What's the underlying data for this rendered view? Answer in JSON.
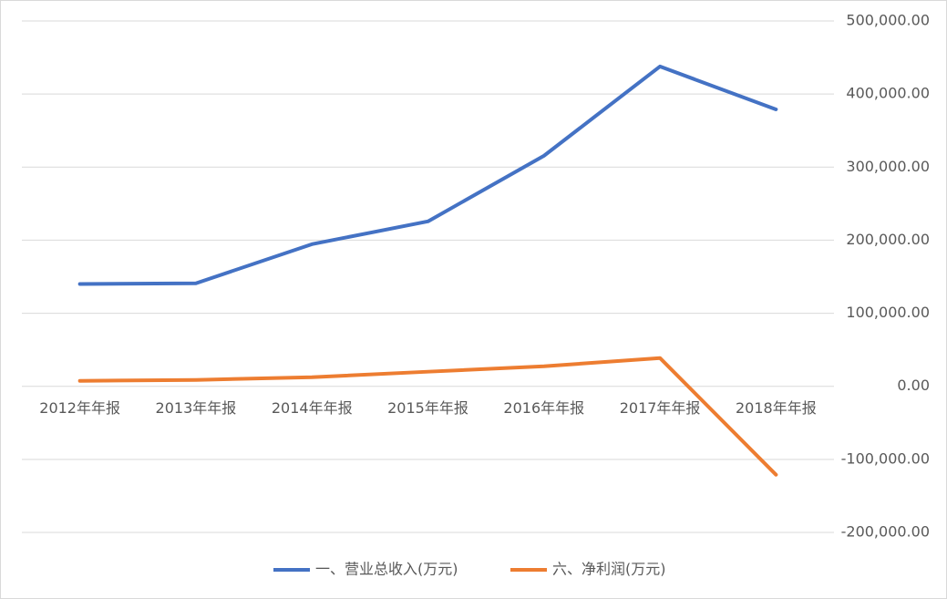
{
  "chart_data": {
    "type": "line",
    "categories": [
      "2012年年报",
      "2013年年报",
      "2014年年报",
      "2015年年报",
      "2016年年报",
      "2017年年报",
      "2018年年报"
    ],
    "series": [
      {
        "name": "一、营业总收入(万元)",
        "color": "#4472c4",
        "values": [
          140000,
          141000,
          194500,
          225700,
          315500,
          437700,
          379000
        ]
      },
      {
        "name": "六、净利润(万元)",
        "color": "#ed7d31",
        "values": [
          7500,
          8700,
          12500,
          20000,
          27400,
          38700,
          -121000
        ]
      }
    ],
    "ylim": [
      -200000,
      500000
    ],
    "yticks": [
      {
        "value": -200000,
        "label": "-200,000.00"
      },
      {
        "value": -100000,
        "label": "-100,000.00"
      },
      {
        "value": 0,
        "label": "0.00"
      },
      {
        "value": 100000,
        "label": "100,000.00"
      },
      {
        "value": 200000,
        "label": "200,000.00"
      },
      {
        "value": 300000,
        "label": "300,000.00"
      },
      {
        "value": 400000,
        "label": "400,000.00"
      },
      {
        "value": 500000,
        "label": "500,000.00"
      }
    ],
    "grid": true,
    "legend": "bottom"
  }
}
